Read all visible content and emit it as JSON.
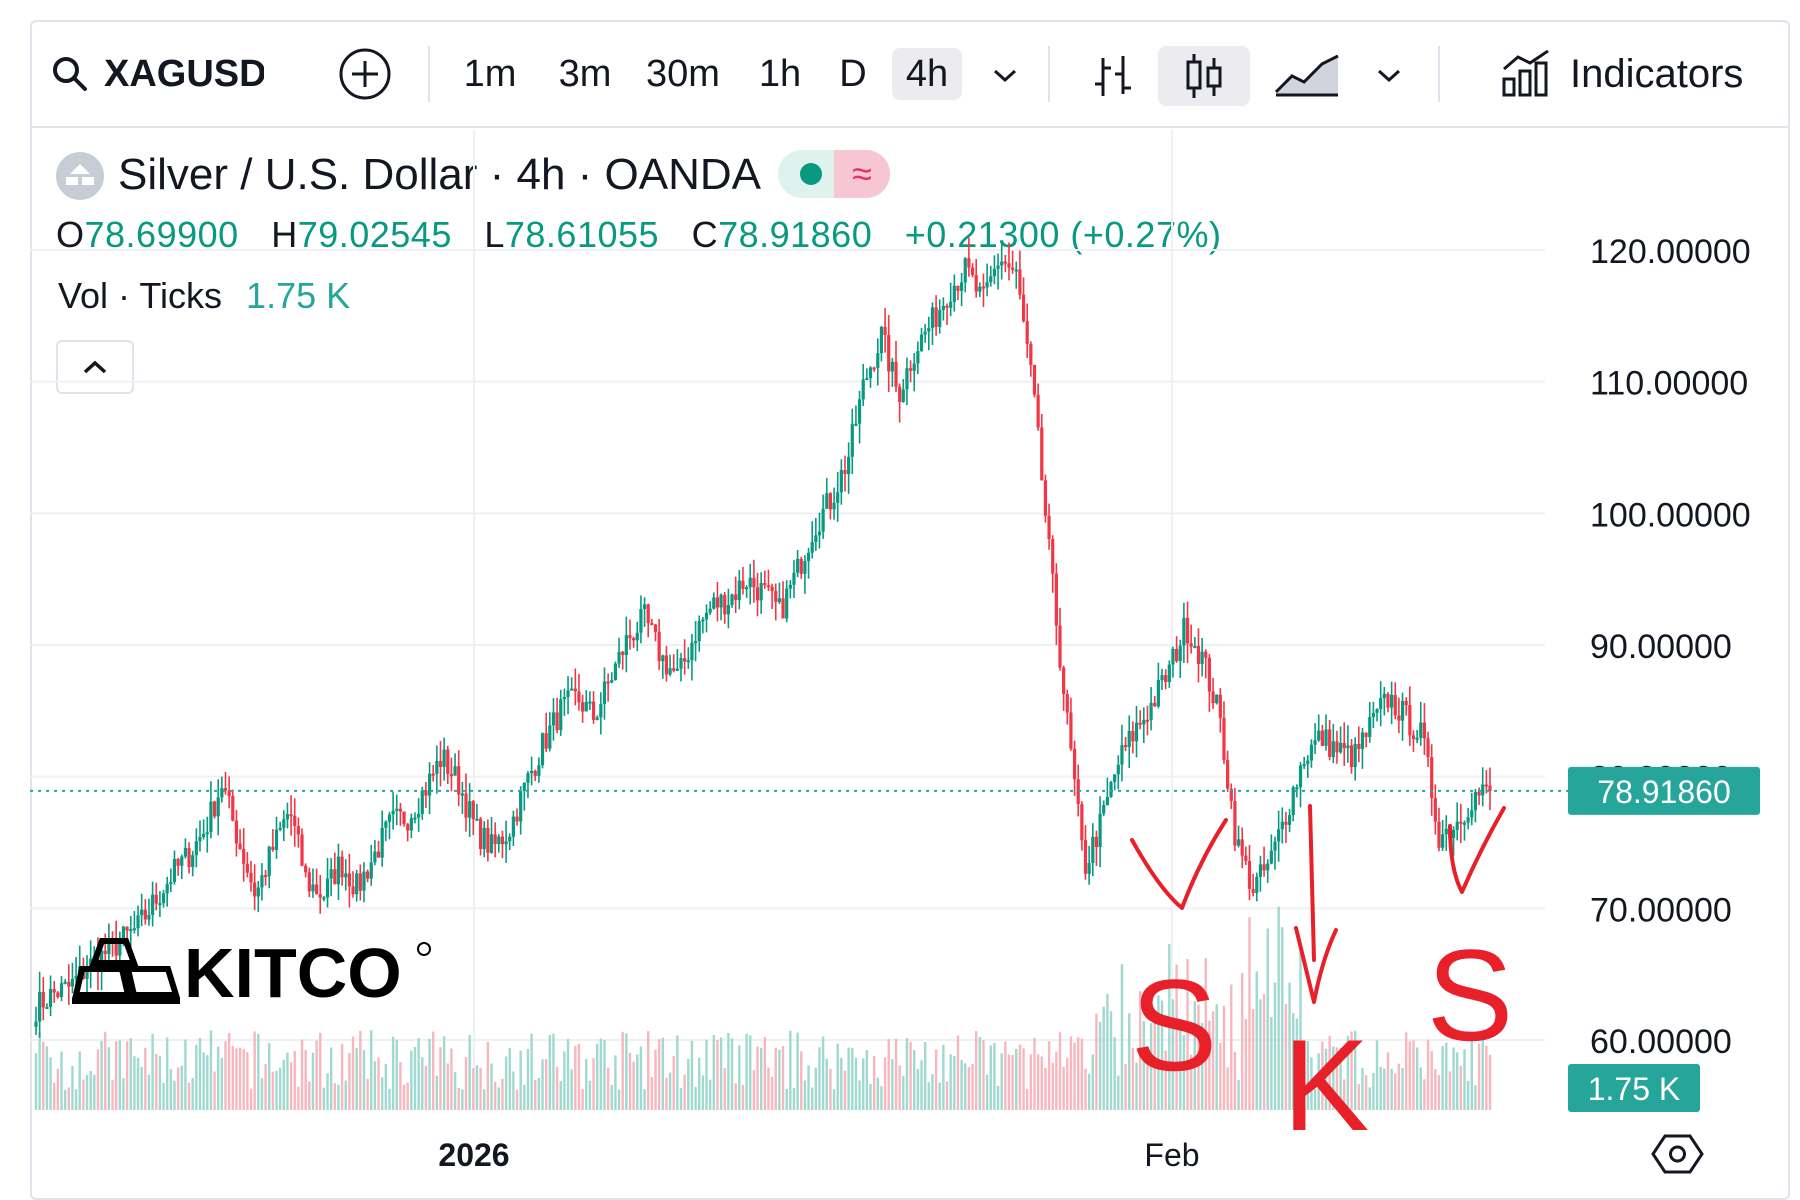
{
  "toolbar": {
    "symbol": "XAGUSD",
    "timeframes": [
      "1m",
      "3m",
      "30m",
      "1h",
      "D",
      "4h"
    ],
    "active_timeframe": "4h",
    "indicators_label": "Indicators"
  },
  "legend": {
    "title": "Silver / U.S. Dollar · 4h · OANDA",
    "open_label": "O",
    "open": "78.69900",
    "high_label": "H",
    "high": "79.02545",
    "low_label": "L",
    "low": "78.61055",
    "close_label": "C",
    "close": "78.91860",
    "change": "+0.21300 (+0.27%)",
    "volume_label": "Vol · Ticks",
    "volume": "1.75 K"
  },
  "watermark": "KITCO",
  "annotations": [
    "S",
    "K",
    "S"
  ],
  "colors": {
    "up": "#089981",
    "down": "#f23645",
    "vol_up": "#9fd9cf",
    "vol_down": "#f7b7bd",
    "price_tag": "#26a69a",
    "annotation": "#e8202a"
  },
  "chart_data": {
    "type": "candlestick",
    "symbol": "XAGUSD",
    "interval": "4h",
    "y_ticks": [
      60,
      70,
      80,
      90,
      100,
      110,
      120
    ],
    "y_tick_labels": [
      "60.00000",
      "70.00000",
      "80.00000",
      "90.00000",
      "100.00000",
      "110.00000",
      "120.00000"
    ],
    "x_tick_labels": [
      "2026",
      "Feb"
    ],
    "last_price": 78.9186,
    "last_price_label": "78.91860",
    "volume_label": "1.75 K",
    "ylim": [
      55,
      125
    ],
    "price_path": [
      [
        62.5,
        63.5,
        64,
        65.5,
        66.5,
        67.5,
        68.5,
        70.5,
        72.5,
        74,
        76,
        79.5,
        75,
        71,
        74.5,
        77.5,
        72,
        71,
        73.5,
        71.5,
        74,
        76.5,
        77,
        79,
        81.5,
        79.5,
        76,
        74.5,
        76,
        79.5,
        82.5,
        85,
        86,
        84.5,
        87.5,
        90.5,
        92,
        89,
        87.5,
        91,
        93,
        93.5,
        95,
        94,
        92.5,
        95.5,
        99,
        101,
        104,
        110,
        113.5,
        109,
        112.5,
        114.5,
        117,
        118.5,
        116,
        119.5,
        118,
        109,
        96,
        84,
        73,
        76.5,
        81,
        83.5,
        85.5,
        88,
        91.5,
        89,
        84.5,
        75,
        71.5,
        73.5,
        77.5,
        81.5,
        83,
        82,
        81.5,
        84,
        86,
        84.5,
        83,
        75.5,
        76.5,
        78.5,
        78.9
      ]
    ],
    "series": [
      {
        "name": "XAGUSD",
        "values": []
      }
    ]
  }
}
